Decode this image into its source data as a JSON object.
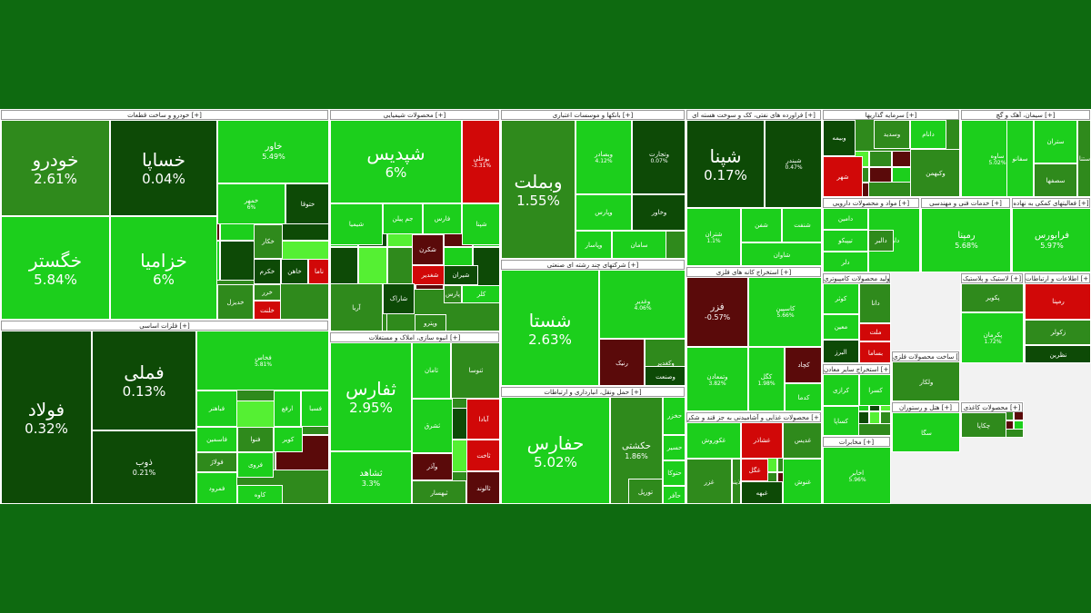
{
  "chart_data": {
    "type": "heatmap",
    "title": "",
    "colors": {
      "dark": "#0d4a06",
      "mid": "#2f8a1c",
      "bright": "#1ccf1c",
      "light": "#55f033",
      "red": "#d10808",
      "maroon": "#5a0a0a",
      "banner": "#0e6a10"
    },
    "sectors": [
      {
        "label": "خودرو و ساخت قطعات [+]",
        "cells": [
          {
            "name": "خودرو",
            "change": "2.61%",
            "value": 2.61,
            "c": "mid",
            "size": "big"
          },
          {
            "name": "خگستر",
            "change": "5.84%",
            "value": 5.84,
            "c": "bright",
            "size": "big"
          },
          {
            "name": "خساپا",
            "change": "0.04%",
            "value": 0.04,
            "c": "dark",
            "size": "big"
          },
          {
            "name": "خزامیا",
            "change": "6%",
            "value": 6,
            "c": "bright",
            "size": "big"
          },
          {
            "name": "خاور",
            "change": "5.49%",
            "value": 5.49,
            "c": "bright",
            "size": "mid"
          },
          {
            "name": "خمهر",
            "change": "6%",
            "value": 6,
            "c": "bright"
          },
          {
            "name": "ختوقا",
            "change": "",
            "c": "dark"
          },
          {
            "name": "خکار",
            "change": "",
            "c": "mid"
          },
          {
            "name": "خکرم",
            "change": "",
            "c": "dark"
          },
          {
            "name": "خاهن",
            "change": "",
            "c": "dark"
          },
          {
            "name": "ناما",
            "change": "",
            "c": "red"
          },
          {
            "name": "خرر",
            "change": "",
            "c": "mid"
          },
          {
            "name": "خدیزل",
            "change": "",
            "c": "mid"
          },
          {
            "name": "خلنت",
            "change": "",
            "c": "red"
          }
        ]
      },
      {
        "label": "فلزات اساسی [+]",
        "cells": [
          {
            "name": "فولاد",
            "change": "0.32%",
            "value": 0.32,
            "c": "dark",
            "size": "big"
          },
          {
            "name": "فملی",
            "change": "0.13%",
            "value": 0.13,
            "c": "dark",
            "size": "big"
          },
          {
            "name": "ذوب",
            "change": "0.21%",
            "value": 0.21,
            "c": "dark",
            "size": "mid"
          },
          {
            "name": "فخاس",
            "change": "5.81%",
            "value": 5.81,
            "c": "bright"
          },
          {
            "name": "فباهنر",
            "change": "",
            "c": "bright"
          },
          {
            "name": "ارفع",
            "change": "",
            "c": "bright"
          },
          {
            "name": "فسبا",
            "change": "",
            "c": "bright"
          },
          {
            "name": "فاسمین",
            "change": "",
            "c": "bright"
          },
          {
            "name": "فنوا",
            "change": "",
            "c": "mid"
          },
          {
            "name": "کویر",
            "change": "",
            "c": "bright"
          },
          {
            "name": "فولاژ",
            "change": "",
            "c": "mid"
          },
          {
            "name": "فروی",
            "change": "",
            "c": "bright"
          },
          {
            "name": "فمرود",
            "change": "",
            "c": "bright"
          },
          {
            "name": "کاوه",
            "change": "",
            "c": "bright"
          }
        ]
      },
      {
        "label": "محصولات شیمیایی [+]",
        "cells": [
          {
            "name": "شپدیس",
            "change": "6%",
            "value": 6,
            "c": "bright",
            "size": "big"
          },
          {
            "name": "بوعلی",
            "change": "-3.31%",
            "value": -3.31,
            "c": "red"
          },
          {
            "name": "شپنا",
            "change": "",
            "c": "bright"
          },
          {
            "name": "جم پیلن",
            "change": "",
            "c": "bright"
          },
          {
            "name": "شکرن",
            "change": "",
            "c": "maroon"
          },
          {
            "name": "فارس",
            "change": "",
            "c": "bright"
          },
          {
            "name": "شیمیا",
            "change": "",
            "c": "bright"
          },
          {
            "name": "شغدیر",
            "change": "",
            "c": "red"
          },
          {
            "name": "شاراک",
            "change": "",
            "c": "dark"
          },
          {
            "name": "شیران",
            "change": "",
            "c": "dark"
          },
          {
            "name": "پارس",
            "change": "",
            "c": "mid"
          },
          {
            "name": "کلر",
            "change": "",
            "c": "bright"
          },
          {
            "name": "آریا",
            "change": "",
            "c": "mid"
          },
          {
            "name": "وپترو",
            "change": "",
            "c": "mid"
          }
        ]
      },
      {
        "label": "انبوه سازی، املاک و مستغلات [+]",
        "cells": [
          {
            "name": "ثفارس",
            "change": "2.95%",
            "value": 2.95,
            "c": "bright",
            "size": "big"
          },
          {
            "name": "ثشاهد",
            "change": "3.3%",
            "value": 3.3,
            "c": "bright",
            "size": "mid"
          },
          {
            "name": "ثامان",
            "change": "",
            "c": "bright"
          },
          {
            "name": "آبادا",
            "change": "",
            "c": "red"
          },
          {
            "name": "ثشرق",
            "change": "",
            "c": "bright"
          },
          {
            "name": "ثنوسا",
            "change": "",
            "c": "mid"
          },
          {
            "name": "وآذر",
            "change": "",
            "c": "maroon"
          },
          {
            "name": "ثاخت",
            "change": "",
            "c": "red"
          },
          {
            "name": "ثبهسار",
            "change": "",
            "c": "mid"
          },
          {
            "name": "ثالوند",
            "change": "",
            "c": "maroon"
          }
        ]
      },
      {
        "label": "بانکها و موسسات اعتباری [+]",
        "cells": [
          {
            "name": "وبملت",
            "change": "1.55%",
            "value": 1.55,
            "c": "mid",
            "size": "big"
          },
          {
            "name": "وبصادر",
            "change": "4.12%",
            "value": 4.12,
            "c": "bright"
          },
          {
            "name": "وتجارت",
            "change": "0.07%",
            "value": 0.07,
            "c": "dark"
          },
          {
            "name": "وپارس",
            "change": "",
            "c": "bright"
          },
          {
            "name": "سامان",
            "change": "",
            "c": "bright"
          },
          {
            "name": "وپاسار",
            "change": "",
            "c": "bright"
          },
          {
            "name": "وخاور",
            "change": "",
            "c": "dark"
          }
        ]
      },
      {
        "label": "شرکتهای چند رشته ای صنعتی [+]",
        "cells": [
          {
            "name": "شستا",
            "change": "2.63%",
            "value": 2.63,
            "c": "bright",
            "size": "big"
          },
          {
            "name": "وغدیر",
            "change": "4.06%",
            "value": 4.06,
            "c": "bright"
          },
          {
            "name": "وکغدیر",
            "change": "",
            "c": "mid"
          },
          {
            "name": "رنیک",
            "change": "",
            "c": "maroon"
          },
          {
            "name": "وصنعت",
            "change": "",
            "c": "dark"
          }
        ]
      },
      {
        "label": "حمل ونقل، انبارداری و ارتباطات [+]",
        "cells": [
          {
            "name": "حفارس",
            "change": "5.02%",
            "value": 5.02,
            "c": "bright",
            "size": "big"
          },
          {
            "name": "حکشتی",
            "change": "1.86%",
            "value": 1.86,
            "c": "mid",
            "size": "mid"
          },
          {
            "name": "حخزر",
            "change": "",
            "c": "bright"
          },
          {
            "name": "حسیر",
            "change": "",
            "c": "bright"
          },
          {
            "name": "حتوکا",
            "change": "",
            "c": "bright"
          },
          {
            "name": "حآفر",
            "change": "",
            "c": "bright"
          },
          {
            "name": "تورپل",
            "change": "",
            "c": "mid"
          }
        ]
      },
      {
        "label": "فراورده های نفتی، کک و سوخت هسته ای [+]",
        "cells": [
          {
            "name": "شپنا",
            "change": "0.17%",
            "value": 0.17,
            "c": "dark",
            "size": "big"
          },
          {
            "name": "شبندر",
            "change": "0.47%",
            "value": 0.47,
            "c": "dark"
          },
          {
            "name": "شتران",
            "change": "1.1%",
            "value": 1.1,
            "c": "bright"
          },
          {
            "name": "شفن",
            "change": "",
            "c": "bright"
          },
          {
            "name": "شنفت",
            "change": "",
            "c": "bright"
          },
          {
            "name": "شاوان",
            "change": "",
            "c": "bright"
          }
        ]
      },
      {
        "label": "استخراج کانه های فلزی [+]",
        "cells": [
          {
            "name": "فزر",
            "change": "-0.57%",
            "value": -0.57,
            "c": "maroon",
            "size": "mid"
          },
          {
            "name": "کاسپین",
            "change": "5.66%",
            "value": 5.66,
            "c": "bright"
          },
          {
            "name": "کگل",
            "change": "1.98%",
            "value": 1.98,
            "c": "bright"
          },
          {
            "name": "وتمعادن",
            "change": "3.82%",
            "value": 3.82,
            "c": "bright"
          },
          {
            "name": "کچاد",
            "change": "",
            "c": "maroon"
          },
          {
            "name": "کدما",
            "change": "",
            "c": "bright"
          },
          {
            "name": "کرومیت",
            "change": "",
            "c": "bright"
          },
          {
            "name": "کجلی",
            "change": "",
            "c": "red"
          }
        ]
      },
      {
        "label": "محصولات غذایی و آشامیدنی به جز قند و شکر [+]",
        "cells": [
          {
            "name": "غکوروش",
            "change": "",
            "c": "bright"
          },
          {
            "name": "غشاذر",
            "change": "",
            "c": "red"
          },
          {
            "name": "غزر",
            "change": "",
            "c": "mid"
          },
          {
            "name": "غگل",
            "change": "",
            "c": "red"
          },
          {
            "name": "غدیس",
            "change": "",
            "c": "mid"
          },
          {
            "name": "غنوش",
            "change": "",
            "c": "bright"
          },
          {
            "name": "غبهه",
            "change": "",
            "c": "dark"
          },
          {
            "name": "آذینه",
            "change": "",
            "c": "mid"
          }
        ]
      },
      {
        "label": "سرمایه گذاریها [+]",
        "cells": [
          {
            "name": "وبیمه",
            "change": "",
            "c": "dark"
          },
          {
            "name": "وسدید",
            "change": "",
            "c": "mid"
          },
          {
            "name": "دانام",
            "change": "",
            "c": "bright"
          },
          {
            "name": "شهر",
            "change": "",
            "c": "red"
          },
          {
            "name": "وکبهمن",
            "change": "",
            "c": "mid"
          }
        ]
      },
      {
        "label": "سیمان، آهک و گچ [+]",
        "cells": [
          {
            "name": "سیاها",
            "change": "",
            "c": "mid"
          },
          {
            "name": "ستران",
            "change": "",
            "c": "bright"
          },
          {
            "name": "سصفها",
            "change": "",
            "c": "mid"
          },
          {
            "name": "ساوه",
            "change": "5.02%",
            "value": 5.02,
            "c": "bright"
          },
          {
            "name": "سفانو",
            "change": "",
            "c": "bright"
          },
          {
            "name": "ستنا",
            "change": "",
            "c": "mid"
          }
        ]
      },
      {
        "label": "مواد و محصولات دارویی [+]",
        "cells": [
          {
            "name": "دامین",
            "change": "",
            "c": "bright"
          },
          {
            "name": "تیپیکو",
            "change": "",
            "c": "bright"
          },
          {
            "name": "دلر",
            "change": "",
            "c": "bright"
          },
          {
            "name": "دارا",
            "change": "",
            "c": "bright"
          },
          {
            "name": "دالبر",
            "change": "",
            "c": "mid"
          }
        ]
      },
      {
        "label": "خدمات فنی و مهندسی [+]",
        "cells": [
          {
            "name": "رمپنا",
            "change": "5.68%",
            "value": 5.68,
            "c": "bright",
            "size": "mid"
          }
        ]
      },
      {
        "label": "فعالیتهای کمکی به نهاده [+]",
        "cells": [
          {
            "name": "فرابورس",
            "change": "5.97%",
            "value": 5.97,
            "c": "bright",
            "size": "mid"
          }
        ]
      },
      {
        "label": "تولید محصولات کامپیوتری [+]",
        "cells": [
          {
            "name": "کوثر",
            "change": "",
            "c": "bright"
          },
          {
            "name": "دانا",
            "change": "",
            "c": "mid"
          },
          {
            "name": "معین",
            "change": "",
            "c": "bright"
          },
          {
            "name": "البرز",
            "change": "",
            "c": "dark"
          },
          {
            "name": "ملت",
            "change": "",
            "c": "red"
          },
          {
            "name": "بساما",
            "change": "",
            "c": "red"
          }
        ]
      },
      {
        "label": "لاستیک و پلاستیک [+]",
        "cells": [
          {
            "name": "پکویر",
            "change": "",
            "c": "mid"
          },
          {
            "name": "پکرمان",
            "change": "1.72%",
            "value": 1.72,
            "c": "bright"
          }
        ]
      },
      {
        "label": "ساخت محصولات فلزی [+]",
        "cells": [
          {
            "name": "ولکار",
            "change": "",
            "c": "mid"
          },
          {
            "name": "ونیرو",
            "change": "",
            "c": "mid"
          },
          {
            "name": "وایران",
            "change": "",
            "c": "bright"
          }
        ]
      },
      {
        "label": "استخراج سایر معادن [+]",
        "cells": [
          {
            "name": "کرازی",
            "change": "",
            "c": "bright"
          },
          {
            "name": "کسرا",
            "change": "",
            "c": "bright"
          },
          {
            "name": "کساپا",
            "change": "",
            "c": "bright"
          }
        ]
      },
      {
        "label": "محصولات کاغذی [+]",
        "cells": [
          {
            "name": "چکاپا",
            "change": "",
            "c": "mid"
          }
        ]
      },
      {
        "label": "هتل و رستوران [+]",
        "cells": [
          {
            "name": "سگا",
            "change": "",
            "c": "bright"
          },
          {
            "name": "آبادا",
            "change": "",
            "c": "bright"
          },
          {
            "name": "گدنا",
            "change": "",
            "c": "bright"
          }
        ]
      },
      {
        "label": "مخابرات [+]",
        "cells": [
          {
            "name": "اخابر",
            "change": "5.96%",
            "value": 5.96,
            "c": "bright"
          }
        ]
      },
      {
        "label": "اطلاعات و ارتباطات [+]",
        "cells": [
          {
            "name": "رمپنا",
            "change": "",
            "c": "red"
          },
          {
            "name": "زکولر",
            "change": "",
            "c": "mid"
          },
          {
            "name": "نظرین",
            "change": "",
            "c": "dark"
          }
        ]
      }
    ]
  }
}
